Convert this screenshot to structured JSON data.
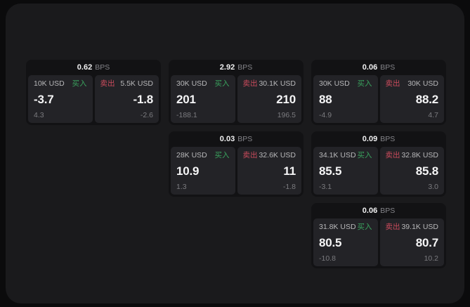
{
  "labels": {
    "bps_unit": "BPS",
    "buy": "买入",
    "sell": "卖出"
  },
  "colors": {
    "buy_green": "#3aa35e",
    "sell_red": "#cb4b5c"
  },
  "cards": [
    {
      "bps": "0.62",
      "row": 1,
      "col": 1,
      "buy": {
        "amount": "10K USD",
        "value": "-3.7",
        "delta": "4.3"
      },
      "sell": {
        "amount": "5.5K USD",
        "value": "-1.8",
        "delta": "-2.6"
      }
    },
    {
      "bps": "2.92",
      "row": 1,
      "col": 2,
      "buy": {
        "amount": "30K USD",
        "value": "201",
        "delta": "-188.1"
      },
      "sell": {
        "amount": "30.1K USD",
        "value": "210",
        "delta": "196.5"
      }
    },
    {
      "bps": "0.06",
      "row": 1,
      "col": 3,
      "buy": {
        "amount": "30K USD",
        "value": "88",
        "delta": "-4.9"
      },
      "sell": {
        "amount": "30K USD",
        "value": "88.2",
        "delta": "4.7"
      }
    },
    {
      "bps": "0.03",
      "row": 2,
      "col": 2,
      "buy": {
        "amount": "28K USD",
        "value": "10.9",
        "delta": "1.3"
      },
      "sell": {
        "amount": "32.6K USD",
        "value": "11",
        "delta": "-1.8"
      }
    },
    {
      "bps": "0.09",
      "row": 2,
      "col": 3,
      "buy": {
        "amount": "34.1K USD",
        "value": "85.5",
        "delta": "-3.1"
      },
      "sell": {
        "amount": "32.8K USD",
        "value": "85.8",
        "delta": "3.0"
      }
    },
    {
      "bps": "0.06",
      "row": 3,
      "col": 3,
      "buy": {
        "amount": "31.8K USD",
        "value": "80.5",
        "delta": "-10.8"
      },
      "sell": {
        "amount": "39.1K USD",
        "value": "80.7",
        "delta": "10.2"
      }
    }
  ]
}
